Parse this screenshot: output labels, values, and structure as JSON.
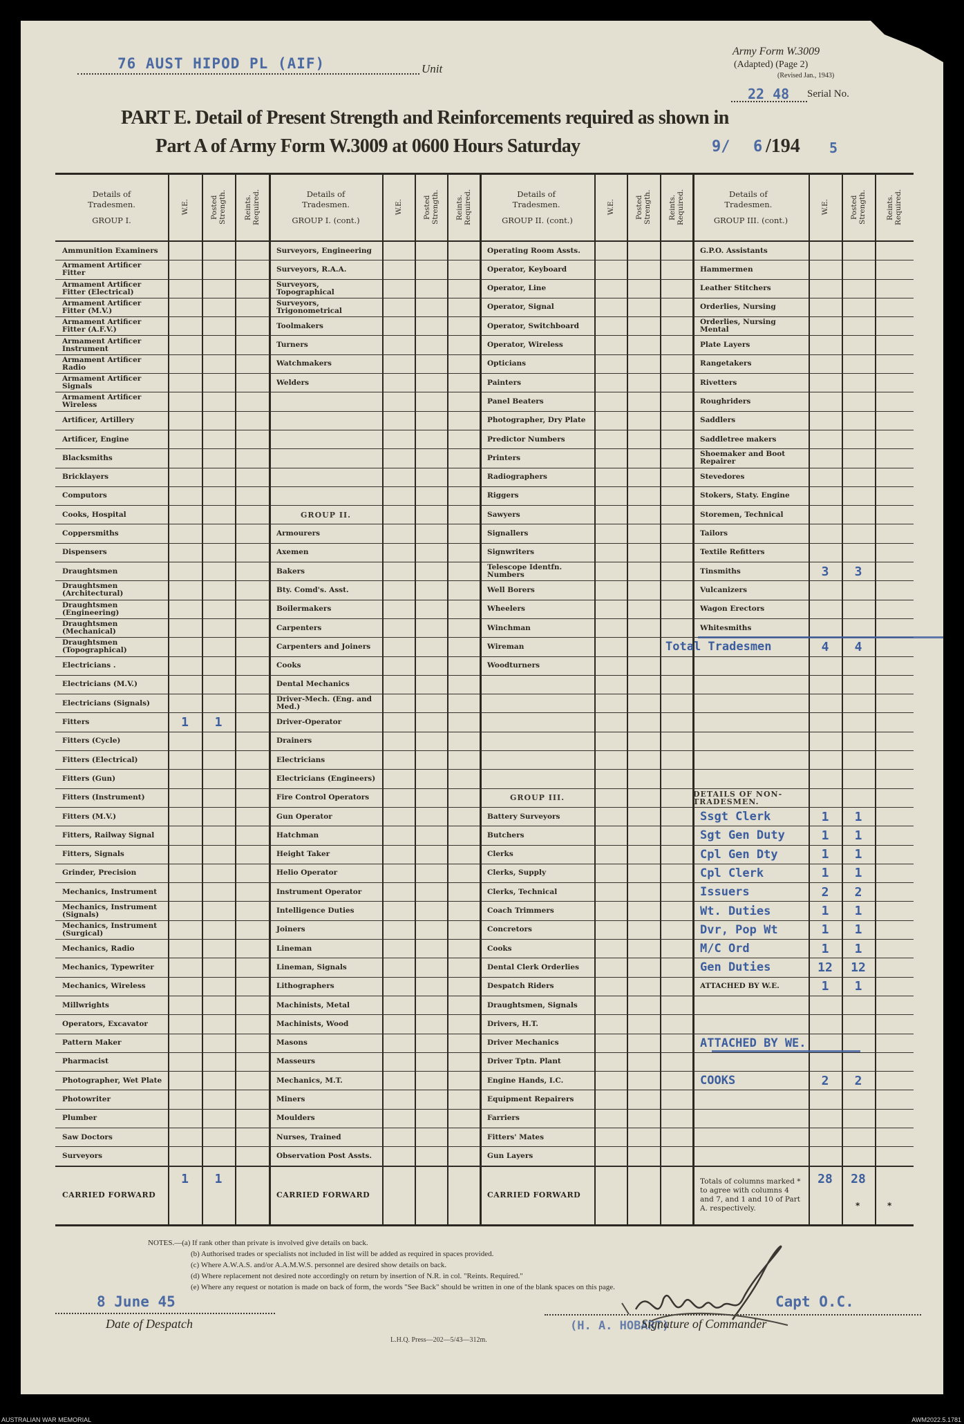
{
  "header": {
    "unit_value": "76 AUST HIPOD PL (AIF)",
    "unit_label": "Unit",
    "form_name": "Army Form W.3009",
    "form_adapted": "(Adapted) (Page 2)",
    "form_revised": "(Revised Jan., 1943)",
    "serial_value": "22 48",
    "serial_label": "Serial No.",
    "title_line1": "PART E.  Detail of Present Strength and Reinforcements required as shown in",
    "title_line2": "Part A of Army Form W.3009 at 0600 Hours Saturday",
    "date_day": "9/",
    "date_month": "6",
    "date_year_printed": "/194",
    "date_year_typed": "5"
  },
  "column_headers": {
    "details": "Details of Tradesmen.",
    "we": "W.E.",
    "posted": "Posted Strength.",
    "reints": "Reints. Required."
  },
  "groups": [
    {
      "heading": "GROUP I.",
      "rows": [
        {
          "name": "Ammunition Examiners"
        },
        {
          "name": "Armament Artificer Fitter"
        },
        {
          "name": "Armament Artificer Fitter (Electrical)"
        },
        {
          "name": "Armament Artificer Fitter (M.V.)"
        },
        {
          "name": "Armament Artificer Fitter (A.F.V.)"
        },
        {
          "name": "Armament Artificer Instrument"
        },
        {
          "name": "Armament Artificer Radio"
        },
        {
          "name": "Armament Artificer Signals"
        },
        {
          "name": "Armament Artificer Wireless"
        },
        {
          "name": "Artificer, Artillery"
        },
        {
          "name": "Artificer, Engine"
        },
        {
          "name": "Blacksmiths"
        },
        {
          "name": "Bricklayers"
        },
        {
          "name": "Computors"
        },
        {
          "name": "Cooks, Hospital"
        },
        {
          "name": "Coppersmiths"
        },
        {
          "name": "Dispensers"
        },
        {
          "name": "Draughtsmen"
        },
        {
          "name": "Draughtsmen (Architectural)"
        },
        {
          "name": "Draughtsmen (Engineering)"
        },
        {
          "name": "Draughtsmen (Mechanical)"
        },
        {
          "name": "Draughtsmen (Topographical)"
        },
        {
          "name": "Electricians ."
        },
        {
          "name": "Electricians (M.V.)"
        },
        {
          "name": "Electricians (Signals)"
        },
        {
          "name": "Fitters",
          "we": "1",
          "ps": "1"
        },
        {
          "name": "Fitters (Cycle)"
        },
        {
          "name": "Fitters (Electrical)"
        },
        {
          "name": "Fitters (Gun)"
        },
        {
          "name": "Fitters (Instrument)"
        },
        {
          "name": "Fitters (M.V.)"
        },
        {
          "name": "Fitters, Railway Signal"
        },
        {
          "name": "Fitters, Signals"
        },
        {
          "name": "Grinder, Precision"
        },
        {
          "name": "Mechanics, Instrument"
        },
        {
          "name": "Mechanics, Instrument (Signals)"
        },
        {
          "name": "Mechanics, Instrument (Surgical)"
        },
        {
          "name": "Mechanics, Radio"
        },
        {
          "name": "Mechanics, Typewriter"
        },
        {
          "name": "Mechanics, Wireless"
        },
        {
          "name": "Millwrights"
        },
        {
          "name": "Operators, Excavator"
        },
        {
          "name": "Pattern  Maker"
        },
        {
          "name": "Pharmacist"
        },
        {
          "name": "Photographer, Wet Plate"
        },
        {
          "name": "Photowriter"
        },
        {
          "name": "Plumber"
        },
        {
          "name": "Saw Doctors"
        },
        {
          "name": "Surveyors"
        }
      ],
      "carried_forward": {
        "label": "CARRIED FORWARD",
        "we": "1",
        "ps": "1"
      }
    },
    {
      "heading": "GROUP I. (cont.)",
      "rows": [
        {
          "name": "Surveyors, Engineering"
        },
        {
          "name": "Surveyors, R.A.A."
        },
        {
          "name": "Surveyors, Topographical"
        },
        {
          "name": "Surveyors, Trigonometrical"
        },
        {
          "name": "Toolmakers"
        },
        {
          "name": "Turners"
        },
        {
          "name": "Watchmakers"
        },
        {
          "name": "Welders"
        },
        {
          "name": ""
        },
        {
          "name": ""
        },
        {
          "name": ""
        },
        {
          "name": ""
        },
        {
          "name": ""
        },
        {
          "name": ""
        },
        {
          "name": "GROUP II.",
          "heading": true
        },
        {
          "name": "Armourers"
        },
        {
          "name": "Axemen"
        },
        {
          "name": "Bakers"
        },
        {
          "name": "Bty. Comd's. Asst."
        },
        {
          "name": "Boilermakers"
        },
        {
          "name": "Carpenters"
        },
        {
          "name": "Carpenters and Joiners"
        },
        {
          "name": "Cooks"
        },
        {
          "name": "Dental Mechanics"
        },
        {
          "name": "Driver-Mech. (Eng. and Med.)"
        },
        {
          "name": "Driver-Operator"
        },
        {
          "name": "Drainers"
        },
        {
          "name": "Electricians"
        },
        {
          "name": "Electricians (Engineers)"
        },
        {
          "name": "Fire Control Operators"
        },
        {
          "name": "Gun Operator"
        },
        {
          "name": "Hatchman"
        },
        {
          "name": "Height Taker"
        },
        {
          "name": "Helio Operator"
        },
        {
          "name": "Instrument Operator"
        },
        {
          "name": "Intelligence Duties"
        },
        {
          "name": "Joiners"
        },
        {
          "name": "Lineman"
        },
        {
          "name": "Lineman, Signals"
        },
        {
          "name": "Lithographers"
        },
        {
          "name": "Machinists, Metal"
        },
        {
          "name": "Machinists, Wood"
        },
        {
          "name": "Masons"
        },
        {
          "name": "Masseurs"
        },
        {
          "name": "Mechanics, M.T."
        },
        {
          "name": "Miners"
        },
        {
          "name": "Moulders"
        },
        {
          "name": "Nurses, Trained"
        },
        {
          "name": "Observation Post Assts."
        }
      ],
      "carried_forward": {
        "label": "CARRIED FORWARD"
      }
    },
    {
      "heading": "GROUP II. (cont.)",
      "rows": [
        {
          "name": "Operating Room Assts."
        },
        {
          "name": "Operator, Keyboard"
        },
        {
          "name": "Operator, Line"
        },
        {
          "name": "Operator, Signal"
        },
        {
          "name": "Operator, Switchboard"
        },
        {
          "name": "Operator, Wireless"
        },
        {
          "name": "Opticians"
        },
        {
          "name": "Painters"
        },
        {
          "name": "Panel Beaters"
        },
        {
          "name": "Photographer, Dry Plate"
        },
        {
          "name": "Predictor Numbers"
        },
        {
          "name": "Printers"
        },
        {
          "name": "Radiographers"
        },
        {
          "name": "Riggers"
        },
        {
          "name": "Sawyers"
        },
        {
          "name": "Signallers"
        },
        {
          "name": "Signwriters"
        },
        {
          "name": "Telescope Identfn. Numbers"
        },
        {
          "name": "Well Borers"
        },
        {
          "name": "Wheelers"
        },
        {
          "name": "Winchman"
        },
        {
          "name": "Wireman"
        },
        {
          "name": "Woodturners"
        },
        {
          "name": ""
        },
        {
          "name": ""
        },
        {
          "name": ""
        },
        {
          "name": ""
        },
        {
          "name": ""
        },
        {
          "name": ""
        },
        {
          "name": "GROUP III.",
          "heading": true
        },
        {
          "name": "Battery Surveyors"
        },
        {
          "name": "Butchers"
        },
        {
          "name": "Clerks"
        },
        {
          "name": "Clerks, Supply"
        },
        {
          "name": "Clerks, Technical"
        },
        {
          "name": "Coach Trimmers"
        },
        {
          "name": "Concretors"
        },
        {
          "name": "Cooks"
        },
        {
          "name": "Dental Clerk Orderlies"
        },
        {
          "name": "Despatch Riders"
        },
        {
          "name": "Draughtsmen, Signals"
        },
        {
          "name": "Drivers, H.T."
        },
        {
          "name": "Driver Mechanics"
        },
        {
          "name": "Driver Tptn. Plant"
        },
        {
          "name": "Engine Hands, I.C."
        },
        {
          "name": "Equipment Repairers"
        },
        {
          "name": "Farriers"
        },
        {
          "name": "Fitters' Mates"
        },
        {
          "name": "Gun Layers"
        }
      ],
      "carried_forward": {
        "label": "CARRIED FORWARD"
      }
    },
    {
      "heading": "GROUP III. (cont.)",
      "rows": [
        {
          "name": "G.P.O. Assistants"
        },
        {
          "name": "Hammermen"
        },
        {
          "name": "Leather Stitchers"
        },
        {
          "name": "Orderlies, Nursing"
        },
        {
          "name": "Orderlies, Nursing Mental"
        },
        {
          "name": "Plate Layers"
        },
        {
          "name": "Rangetakers"
        },
        {
          "name": "Rivetters"
        },
        {
          "name": "Roughriders"
        },
        {
          "name": "Saddlers"
        },
        {
          "name": "Saddletree makers"
        },
        {
          "name": "Shoemaker and Boot Repairer"
        },
        {
          "name": "Stevedores"
        },
        {
          "name": "Stokers, Staty. Engine"
        },
        {
          "name": "Storemen, Technical"
        },
        {
          "name": "Tailors"
        },
        {
          "name": "Textile Refitters"
        },
        {
          "name": "Tinsmiths",
          "we": "3",
          "ps": "3"
        },
        {
          "name": "Vulcanizers"
        },
        {
          "name": "Wagon Erectors"
        },
        {
          "name": "Whitesmiths"
        },
        {
          "name": "Total Tradesmen",
          "typed": true,
          "we": "4",
          "ps": "4"
        },
        {
          "name": ""
        },
        {
          "name": ""
        },
        {
          "name": ""
        },
        {
          "name": ""
        },
        {
          "name": ""
        },
        {
          "name": ""
        },
        {
          "name": ""
        },
        {
          "name": "DETAILS OF NON-TRADESMEN.",
          "heading": true
        },
        {
          "name": "Ssgt Clerk",
          "typed": true,
          "we": "1",
          "ps": "1"
        },
        {
          "name": "Sgt Gen Duty",
          "typed": true,
          "we": "1",
          "ps": "1"
        },
        {
          "name": "Cpl Gen Dty",
          "typed": true,
          "we": "1",
          "ps": "1"
        },
        {
          "name": "Cpl Clerk",
          "typed": true,
          "we": "1",
          "ps": "1"
        },
        {
          "name": "Issuers",
          "typed": true,
          "we": "2",
          "ps": "2"
        },
        {
          "name": "Wt. Duties",
          "typed": true,
          "we": "1",
          "ps": "1"
        },
        {
          "name": "Dvr, Pop Wt",
          "typed": true,
          "we": "1",
          "ps": "1"
        },
        {
          "name": "M/C Ord",
          "typed": true,
          "we": "1",
          "ps": "1"
        },
        {
          "name": "Gen Duties",
          "typed": true,
          "we": "12",
          "ps": "12"
        },
        {
          "name": "ATTACHED BY W.E.",
          "we": "1",
          "ps": "1"
        },
        {
          "name": ""
        },
        {
          "name": ""
        },
        {
          "name": "ATTACHED BY WE.",
          "typed": true
        },
        {
          "name": ""
        },
        {
          "name": "COOKS",
          "typed": true,
          "we": "2",
          "ps": "2"
        },
        {
          "name": ""
        },
        {
          "name": ""
        },
        {
          "name": ""
        },
        {
          "name": ""
        }
      ],
      "carried_forward": {
        "label": "Totals of columns marked * to agree with columns 4 and 7, and 1 and 10 of Part A. respectively.",
        "we": "28",
        "ps": "28",
        "ps_mark": "*",
        "rr_mark": "*"
      }
    }
  ],
  "notes": {
    "prefix": "NOTES.—",
    "items": [
      "(a) If rank other than private is involved give details on back.",
      "(b) Authorised trades or specialists not included in list will be added as required in spaces provided.",
      "(c) Where A.W.A.S. and/or A.A.M.W.S. personnel are desired show details on back.",
      "(d) Where replacement not desired note accordingly on return by insertion of N.R. in col. \"Reints. Required.\"",
      "(e) Where any request or notation is made on back of form, the words \"See Back\" should be written in one of the blank spaces on this page."
    ]
  },
  "footer": {
    "despatch_date": "8 June 45",
    "despatch_label": "Date of Despatch",
    "commander_rank": "Capt O.C.",
    "commander_name": "(H. A. HOBART)",
    "signature_label": "Signature of Commander",
    "press_mark": "L.H.Q. Press—202—5/43—312m."
  },
  "archive": {
    "left": "AUSTRALIAN WAR MEMORIAL",
    "right": "AWM2022.5.1781"
  },
  "colors": {
    "paper": "#e4e0d1",
    "typewriter_ink": "#3b5d9e",
    "print": "#2b2822"
  }
}
